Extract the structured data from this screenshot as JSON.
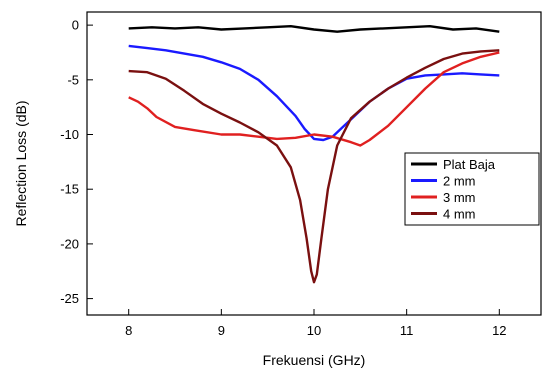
{
  "chart_data": {
    "type": "line",
    "xlabel": "Frekuensi (GHz)",
    "ylabel": "Reflection Loss (dB)",
    "xlim": [
      7.55,
      12.45
    ],
    "ylim": [
      -26.5,
      1.2
    ],
    "xticks": [
      8,
      9,
      10,
      11,
      12
    ],
    "yticks": [
      0,
      -5,
      -10,
      -15,
      -20,
      -25
    ],
    "legend_position": "right-center",
    "series": [
      {
        "name": "Plat Baja",
        "color": "#000000",
        "x": [
          8.0,
          8.25,
          8.5,
          8.75,
          9.0,
          9.25,
          9.5,
          9.75,
          10.0,
          10.25,
          10.5,
          10.75,
          11.0,
          11.25,
          11.5,
          11.75,
          12.0
        ],
        "y": [
          -0.3,
          -0.2,
          -0.3,
          -0.2,
          -0.4,
          -0.3,
          -0.2,
          -0.1,
          -0.4,
          -0.6,
          -0.4,
          -0.3,
          -0.2,
          -0.1,
          -0.4,
          -0.3,
          -0.6
        ]
      },
      {
        "name": "2 mm",
        "color": "#1a1aff",
        "x": [
          8.0,
          8.2,
          8.4,
          8.6,
          8.8,
          9.0,
          9.2,
          9.4,
          9.6,
          9.8,
          9.9,
          10.0,
          10.1,
          10.2,
          10.4,
          10.6,
          10.8,
          11.0,
          11.2,
          11.4,
          11.6,
          11.8,
          12.0
        ],
        "y": [
          -1.9,
          -2.1,
          -2.3,
          -2.6,
          -2.9,
          -3.4,
          -4.0,
          -5.0,
          -6.5,
          -8.3,
          -9.5,
          -10.4,
          -10.5,
          -10.2,
          -8.6,
          -7.0,
          -5.8,
          -4.9,
          -4.6,
          -4.5,
          -4.4,
          -4.5,
          -4.6
        ]
      },
      {
        "name": "3 mm",
        "color": "#e02020",
        "x": [
          8.0,
          8.1,
          8.2,
          8.3,
          8.5,
          8.7,
          9.0,
          9.2,
          9.4,
          9.6,
          9.8,
          10.0,
          10.2,
          10.4,
          10.5,
          10.6,
          10.8,
          11.0,
          11.2,
          11.4,
          11.6,
          11.8,
          12.0
        ],
        "y": [
          -6.6,
          -7.0,
          -7.6,
          -8.4,
          -9.3,
          -9.6,
          -10.0,
          -10.0,
          -10.2,
          -10.4,
          -10.3,
          -10.0,
          -10.2,
          -10.7,
          -11.0,
          -10.5,
          -9.2,
          -7.5,
          -5.8,
          -4.3,
          -3.5,
          -2.9,
          -2.5
        ]
      },
      {
        "name": "4 mm",
        "color": "#7a1010",
        "x": [
          8.0,
          8.2,
          8.4,
          8.6,
          8.8,
          9.0,
          9.2,
          9.4,
          9.6,
          9.75,
          9.85,
          9.92,
          9.97,
          10.0,
          10.03,
          10.08,
          10.15,
          10.25,
          10.4,
          10.6,
          10.8,
          11.0,
          11.2,
          11.4,
          11.6,
          11.8,
          12.0
        ],
        "y": [
          -4.2,
          -4.3,
          -4.9,
          -6.0,
          -7.2,
          -8.1,
          -8.9,
          -9.8,
          -11.0,
          -13.0,
          -16.0,
          -19.5,
          -22.5,
          -23.5,
          -22.8,
          -19.5,
          -15.0,
          -11.0,
          -8.5,
          -7.0,
          -5.8,
          -4.8,
          -3.9,
          -3.1,
          -2.6,
          -2.4,
          -2.3
        ]
      }
    ]
  }
}
